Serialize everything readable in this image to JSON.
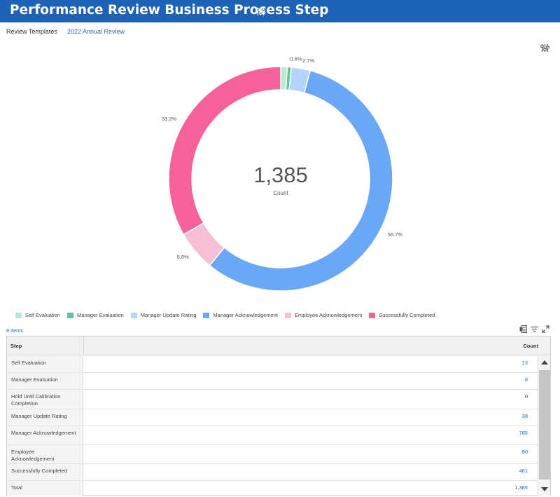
{
  "header": {
    "title": "Performance Review Business Process Step",
    "settings_icon": "sliders-icon"
  },
  "meta": {
    "label": "Review Templates",
    "value": "2022 Annual Review"
  },
  "chart_config_icon": "sliders-icon",
  "chart_data": {
    "type": "pie",
    "variant": "donut",
    "center_value": "1,385",
    "center_label": "Count",
    "slices": [
      {
        "name": "Self Evaluation",
        "value": 13,
        "label": "",
        "color": "#b7e9d5"
      },
      {
        "name": "Manager Evaluation",
        "value": 8,
        "label": "0.6%",
        "color": "#5dc8a0"
      },
      {
        "name": "Manager Update Rating",
        "value": 38,
        "label": "2.7%",
        "color": "#b3d5fb"
      },
      {
        "name": "Manager Acknowledgement",
        "value": 785,
        "label": "56.7%",
        "color": "#6aa8f7"
      },
      {
        "name": "Employee Acknowledgement",
        "value": 80,
        "label": "5.8%",
        "color": "#f7bfd6"
      },
      {
        "name": "Successfully Completed",
        "value": 461,
        "label": "33.3%",
        "color": "#f5629a"
      }
    ],
    "legend": [
      {
        "label": "Self Evaluation",
        "color": "#b7e9d5"
      },
      {
        "label": "Manager Evaluation",
        "color": "#5dc8a0"
      },
      {
        "label": "Manager Update Rating",
        "color": "#b3d5fb"
      },
      {
        "label": "Manager Acknowledgement",
        "color": "#6aa8f7"
      },
      {
        "label": "Employee Acknowledgement",
        "color": "#f7bfd6"
      },
      {
        "label": "Successfully Completed",
        "color": "#f5629a"
      }
    ],
    "legend_position": "bottom-left"
  },
  "table": {
    "items_label": "8 items",
    "tools": [
      "export-excel-icon",
      "filter-icon",
      "fullscreen-icon"
    ],
    "headers": {
      "step": "Step",
      "count": "Count"
    },
    "rows": [
      {
        "step": "Self Evaluation",
        "count": "13",
        "link": true
      },
      {
        "step": "Manager Evaluation",
        "count": "8",
        "link": true
      },
      {
        "step": "Hold Until Calibration Completion",
        "count": "0",
        "link": false
      },
      {
        "step": "Manager Update Rating",
        "count": "38",
        "link": true
      },
      {
        "step": "Manager Acknowledgement",
        "count": "785",
        "link": true
      },
      {
        "step": "Employee Acknowledgement",
        "count": "80",
        "link": true
      },
      {
        "step": "Successfully Completed",
        "count": "461",
        "link": true
      },
      {
        "step": "Total",
        "count": "1,385",
        "link": true
      }
    ]
  }
}
